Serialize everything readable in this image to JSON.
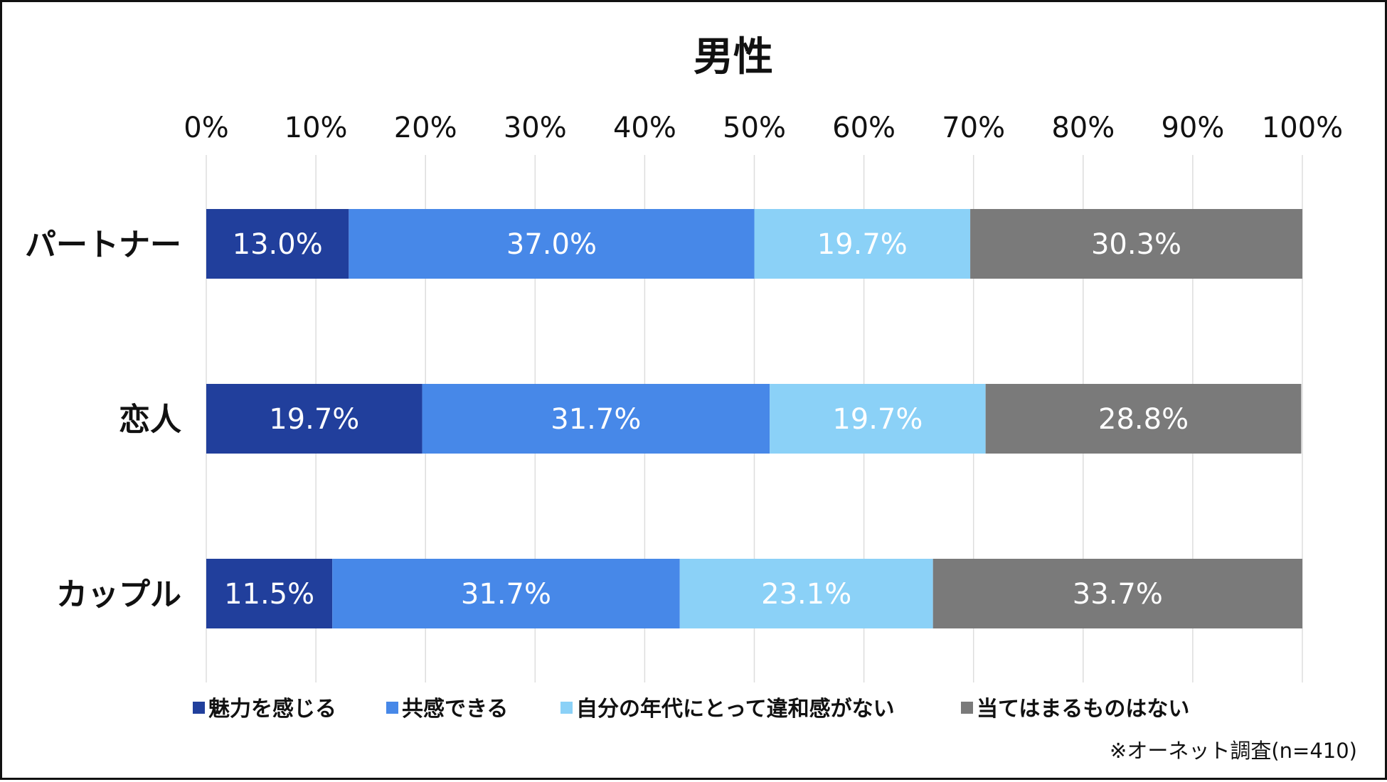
{
  "chart_data": {
    "type": "bar",
    "orientation": "horizontal",
    "stacked": true,
    "title": "男性",
    "categories": [
      "パートナー",
      "恋人",
      "カップル"
    ],
    "series": [
      {
        "name": "魅力を感じる",
        "color": "#213f9c",
        "values": [
          13.0,
          19.7,
          11.5
        ],
        "labels": [
          "13.0%",
          "19.7%",
          "11.5%"
        ]
      },
      {
        "name": "共感できる",
        "color": "#4788e8",
        "values": [
          37.0,
          31.7,
          31.7
        ],
        "labels": [
          "37.0%",
          "31.7%",
          "31.7%"
        ]
      },
      {
        "name": "自分の年代にとって違和感がない",
        "color": "#8bd1f7",
        "values": [
          19.7,
          19.7,
          23.1
        ],
        "labels": [
          "19.7%",
          "19.7%",
          "23.1%"
        ]
      },
      {
        "name": "当てはまるものはない",
        "color": "#7a7a7a",
        "values": [
          30.3,
          28.8,
          33.7
        ],
        "labels": [
          "30.3%",
          "28.8%",
          "33.7%"
        ]
      }
    ],
    "xlim": [
      0,
      100
    ],
    "xticks": [
      "0%",
      "10%",
      "20%",
      "30%",
      "40%",
      "50%",
      "60%",
      "70%",
      "80%",
      "90%",
      "100%"
    ],
    "x_axis_position": "top",
    "grid": true,
    "legend_position": "bottom",
    "note": "※オーネット調査(n=410)"
  }
}
